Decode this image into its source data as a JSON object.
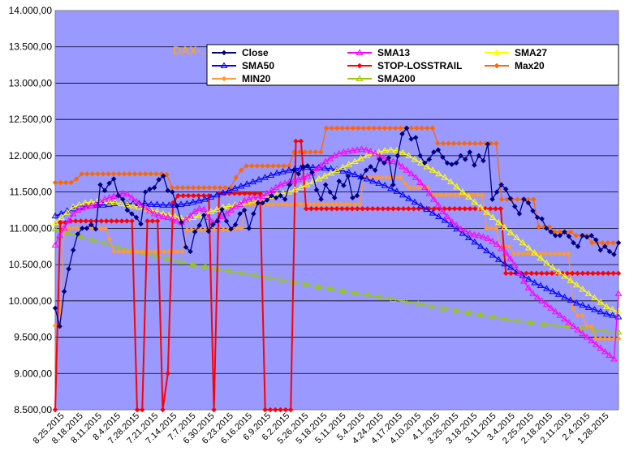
{
  "chart_data": {
    "type": "line",
    "title": "DAX-...",
    "xlabel": "",
    "ylabel": "",
    "ylim": [
      8500,
      14000
    ],
    "ytick_labels": [
      "8.500,00",
      "9.000,00",
      "9.500,00",
      "10.000,00",
      "10.500,00",
      "11.000,00",
      "11.500,00",
      "12.000,00",
      "12.500,00",
      "13.000,00",
      "13.500,00",
      "14.000,00"
    ],
    "x_tick_labels": [
      "8.25.2015",
      "8.18.2015",
      "8.11.2015",
      "8.4.2015",
      "7.28.2015",
      "7.21.2015",
      "7.14.2015",
      "7.7.2015",
      "6.30.2015",
      "6.23.2015",
      "6.16.2015",
      "6.9.2015",
      "6.2.2015",
      "5.26.2015",
      "5.18.2015",
      "5.11.2015",
      "5.4.2015",
      "4.24.2015",
      "4.17.2015",
      "4.10.2015",
      "4.1.2015",
      "3.25.2015",
      "3.18.2015",
      "3.11.2015",
      "3.4.2015",
      "2.25.2015",
      "2.18.2015",
      "2.11.2015",
      "2.4.2015",
      "1.28.2015"
    ],
    "grid": true,
    "plot_background": "#9999ff",
    "legend_position": "top-right",
    "series": [
      {
        "name": "Close",
        "color": "#000080",
        "marker": "diamond",
        "values": [
          9900,
          9650,
          10130,
          10440,
          10700,
          10920,
          11000,
          11000,
          11050,
          10990,
          11600,
          11520,
          11620,
          11680,
          11450,
          11400,
          11250,
          11200,
          11150,
          11060,
          11500,
          11540,
          11560,
          11670,
          11720,
          11520,
          11500,
          11310,
          11080,
          10740,
          10680,
          10950,
          11040,
          11180,
          10960,
          11050,
          11100,
          11260,
          11100,
          10990,
          11050,
          11200,
          11250,
          11000,
          11200,
          11350,
          11350,
          11390,
          11450,
          11420,
          11450,
          11400,
          11600,
          11800,
          11750,
          11850,
          11860,
          11770,
          11530,
          11400,
          11600,
          11500,
          11420,
          11650,
          11590,
          11720,
          11420,
          11450,
          11700,
          11800,
          11850,
          11800,
          11950,
          11900,
          11970,
          11600,
          12000,
          12300,
          12380,
          12230,
          12250,
          12000,
          11900,
          11950,
          12050,
          12080,
          11980,
          11900,
          11880,
          11900,
          12000,
          11950,
          12050,
          11870,
          12000,
          11930,
          12160,
          11400,
          11500,
          11600,
          11540,
          11410,
          11300,
          11200,
          11400,
          11350,
          11240,
          11150,
          11130,
          11000,
          10950,
          10900,
          10900,
          10950,
          10890,
          10800,
          10750,
          10900,
          10880,
          10900,
          10840,
          10700,
          10750,
          10680,
          10640,
          10800
        ]
      },
      {
        "name": "SMA13",
        "color": "#ff00ff",
        "marker": "triangle",
        "values": [
          10770,
          10900,
          11000,
          11100,
          11200,
          11250,
          11280,
          11300,
          11310,
          11330,
          11360,
          11400,
          11420,
          11440,
          11460,
          11480,
          11470,
          11420,
          11370,
          11320,
          11280,
          11240,
          11200,
          11180,
          11160,
          11150,
          11130,
          11100,
          11080,
          11120,
          11170,
          11230,
          11270,
          11260,
          11150,
          11080,
          11110,
          11160,
          11200,
          11250,
          11300,
          11330,
          11380,
          11400,
          11420,
          11420,
          11440,
          11480,
          11520,
          11560,
          11600,
          11620,
          11640,
          11650,
          11670,
          11700,
          11720,
          11760,
          11820,
          11860,
          11920,
          11960,
          12000,
          12030,
          12050,
          12060,
          12070,
          12080,
          12090,
          12080,
          12060,
          12030,
          11990,
          11960,
          11930,
          11920,
          11900,
          11850,
          11800,
          11750,
          11700,
          11630,
          11560,
          11480,
          11400,
          11320,
          11230,
          11160,
          11090,
          11040,
          10990,
          10960,
          10930,
          10910,
          10900,
          10880,
          10860,
          10820,
          10780,
          10720,
          10660,
          10580,
          10490,
          10380,
          10270,
          10180,
          10100,
          10050,
          10000,
          9950,
          9900,
          9850,
          9800,
          9750,
          9700,
          9650,
          9600,
          9550,
          9500,
          9450,
          9400,
          9350,
          9300,
          9250,
          9200,
          10100
        ]
      },
      {
        "name": "SMA27",
        "color": "#ffff00",
        "marker": "triangle",
        "values": [
          11080,
          11150,
          11220,
          11290,
          11320,
          11350,
          11360,
          11370,
          11370,
          11360,
          11350,
          11340,
          11330,
          11310,
          11290,
          11270,
          11250,
          11230,
          11200,
          11180,
          11160,
          11140,
          11130,
          11150,
          11170,
          11200,
          11230,
          11260,
          11290,
          11300,
          11320,
          11340,
          11360,
          11380,
          11400,
          11420,
          11440,
          11460,
          11480,
          11500,
          11530,
          11560,
          11600,
          11640,
          11680,
          11720,
          11760,
          11800,
          11840,
          11880,
          11920,
          11960,
          12000,
          12030,
          12050,
          12070,
          12080,
          12070,
          12040,
          12000,
          11950,
          11900,
          11850,
          11800,
          11750,
          11700,
          11640,
          11570,
          11500,
          11430,
          11360,
          11290,
          11220,
          11150,
          11080,
          11010,
          10940,
          10870,
          10800,
          10730,
          10660,
          10590,
          10520,
          10460,
          10400,
          10340,
          10280,
          10220,
          10160,
          10100,
          10040,
          9980,
          9920,
          9880,
          9850
        ]
      },
      {
        "name": "SMA50",
        "color": "#0000ff",
        "marker": "triangle",
        "values": [
          11170,
          11200,
          11240,
          11270,
          11290,
          11300,
          11310,
          11320,
          11320,
          11330,
          11340,
          11340,
          11340,
          11340,
          11340,
          11340,
          11330,
          11330,
          11320,
          11320,
          11320,
          11330,
          11340,
          11360,
          11380,
          11400,
          11430,
          11460,
          11490,
          11520,
          11550,
          11580,
          11610,
          11640,
          11670,
          11700,
          11730,
          11760,
          11780,
          11800,
          11820,
          11830,
          11840,
          11840,
          11840,
          11830,
          11820,
          11810,
          11790,
          11770,
          11740,
          11710,
          11680,
          11650,
          11620,
          11590,
          11550,
          11510,
          11460,
          11410,
          11360,
          11310,
          11260,
          11210,
          11160,
          11110,
          11050,
          10990,
          10930,
          10870,
          10810,
          10750,
          10690,
          10630,
          10570,
          10510,
          10460,
          10400,
          10350,
          10300,
          10250,
          10210,
          10170,
          10130,
          10090,
          10050,
          10010,
          9970,
          9940,
          9910,
          9880,
          9850,
          9820,
          9800,
          9780
        ]
      },
      {
        "name": "STOP-LOSSTRAIL",
        "color": "#ff0000",
        "marker": "diamond",
        "values": [
          8500,
          11080,
          11080,
          11100,
          11100,
          11100,
          11100,
          11100,
          11100,
          11100,
          11100,
          11100,
          11100,
          11100,
          11100,
          11100,
          8500,
          8500,
          11100,
          11100,
          11100,
          8500,
          9000,
          11350,
          11450,
          11450,
          11450,
          11450,
          11450,
          11450,
          11450,
          8500,
          11480,
          11480,
          11480,
          11480,
          11480,
          11480,
          11480,
          11480,
          11480,
          8500,
          8500,
          8500,
          8500,
          8500,
          8500,
          12200,
          12200,
          11270,
          11270,
          11270,
          11270,
          11270,
          11270,
          11270,
          11270,
          11270,
          11270,
          11270,
          11270,
          11270,
          11270,
          11270,
          11270,
          11270,
          11270,
          11270,
          11270,
          11270,
          11270,
          11270,
          11270,
          11270,
          11270,
          11270,
          11270,
          11270,
          11270,
          11270,
          11270,
          11270,
          11270,
          11270,
          11270,
          11270,
          11270,
          11270,
          10380,
          10380,
          10380,
          10380,
          10380,
          10380,
          10380,
          10380,
          10380,
          10380,
          10380,
          10380,
          10380,
          10380,
          10380,
          10380,
          10380,
          10380,
          10380,
          10380,
          10380,
          10380,
          10380
        ]
      },
      {
        "name": "Max20",
        "color": "#ff6600",
        "marker": "diamond",
        "values": [
          11630,
          11630,
          11630,
          11630,
          11680,
          11750,
          11750,
          11750,
          11750,
          11750,
          11750,
          11750,
          11750,
          11750,
          11750,
          11750,
          11750,
          11750,
          11750,
          11750,
          11750,
          11740,
          11560,
          11560,
          11560,
          11560,
          11560,
          11560,
          11560,
          11560,
          11560,
          11560,
          11560,
          11560,
          11700,
          11800,
          11860,
          11860,
          11860,
          11860,
          11860,
          11860,
          11860,
          11860,
          11860,
          12050,
          12050,
          12050,
          12050,
          12050,
          12050,
          12380,
          12380,
          12380,
          12380,
          12380,
          12380,
          12380,
          12380,
          12380,
          12380,
          12380,
          12380,
          12380,
          12380,
          12380,
          12380,
          12380,
          12380,
          12380,
          12380,
          12380,
          12170,
          12170,
          12170,
          12170,
          12170,
          12170,
          12170,
          12170,
          12170,
          12170,
          12170,
          12170,
          11400,
          11400,
          11400,
          11400,
          11400,
          11400,
          11400,
          11020,
          11020,
          11020,
          10950,
          10950,
          10950,
          10950,
          10900,
          10900,
          10900,
          10800,
          10800,
          10800,
          10800,
          10800,
          10800
        ]
      },
      {
        "name": "MIN20",
        "color": "#ff9933",
        "marker": "diamond",
        "values": [
          9660,
          9660,
          11000,
          11000,
          11000,
          11000,
          11000,
          11000,
          11000,
          11000,
          11000,
          11000,
          10850,
          10680,
          10680,
          10680,
          10680,
          10680,
          10680,
          10680,
          10680,
          10680,
          10680,
          10680,
          10680,
          10680,
          10680,
          10680,
          10680,
          10980,
          10980,
          10980,
          10980,
          10980,
          10980,
          10980,
          10980,
          10980,
          10980,
          10980,
          11000,
          11000,
          11330,
          11330,
          11330,
          11330,
          11330,
          11330,
          11330,
          11330,
          11330,
          11330,
          11330,
          11330,
          11330,
          11330,
          11330,
          11330,
          11330,
          11330,
          11330,
          11330,
          11330,
          11330,
          11330,
          11330,
          11330,
          11330,
          11700,
          11700,
          11700,
          11700,
          11700,
          11700,
          11700,
          11700,
          11700,
          11620,
          11560,
          11560,
          11560,
          11560,
          11560,
          11460,
          11460,
          11460,
          11460,
          11460,
          11460,
          11460,
          11460,
          11460,
          11460,
          11460,
          11460,
          11000,
          11000,
          11000,
          10750,
          10750,
          10750,
          10650,
          10650,
          10650,
          10650,
          10650,
          10650,
          10650,
          10650,
          10650,
          10650,
          10650,
          10650,
          10650,
          9900,
          9800,
          9800,
          9650,
          9650,
          9480,
          9480,
          9480,
          9480,
          9480,
          9480
        ]
      },
      {
        "name": "SMA200",
        "color": "#99cc00",
        "marker": "triangle",
        "values": [
          10990,
          10940,
          10890,
          10840,
          10790,
          10740,
          10700,
          10660,
          10620,
          10580,
          10540,
          10500,
          10470,
          10440,
          10410,
          10380,
          10350,
          10320,
          10290,
          10260,
          10230,
          10200,
          10170,
          10140,
          10110,
          10080,
          10050,
          10020,
          9990,
          9960,
          9930,
          9900,
          9870,
          9840,
          9810,
          9780,
          9750,
          9720,
          9700,
          9680,
          9660,
          9640,
          9620,
          9600,
          9580,
          9570
        ]
      }
    ]
  },
  "legend": {
    "entries": [
      {
        "name": "Close",
        "color": "#000080",
        "marker": "diamond"
      },
      {
        "name": "SMA13",
        "color": "#ff00ff",
        "marker": "triangle"
      },
      {
        "name": "SMA27",
        "color": "#ffff00",
        "marker": "triangle"
      },
      {
        "name": "SMA50",
        "color": "#0000ff",
        "marker": "triangle"
      },
      {
        "name": "STOP-LOSSTRAIL",
        "color": "#ff0000",
        "marker": "diamond"
      },
      {
        "name": "Max20",
        "color": "#ff6600",
        "marker": "diamond"
      },
      {
        "name": "MIN20",
        "color": "#ff9933",
        "marker": "diamond"
      },
      {
        "name": "SMA200",
        "color": "#99cc00",
        "marker": "triangle"
      }
    ]
  }
}
